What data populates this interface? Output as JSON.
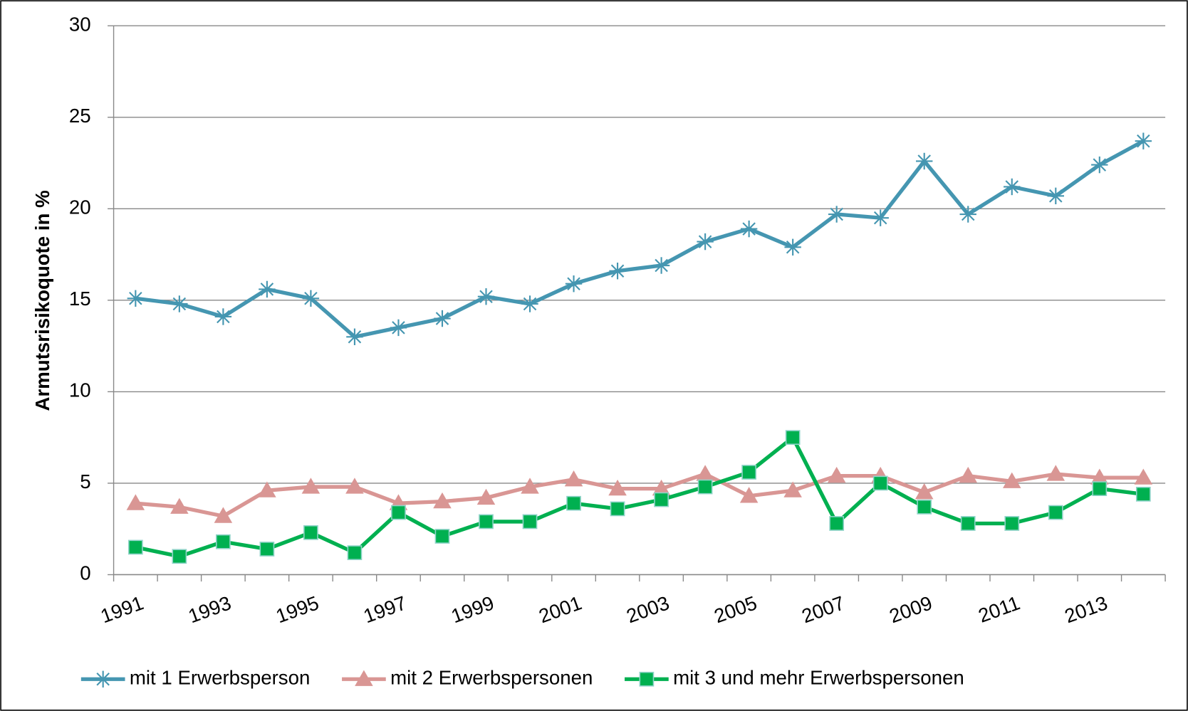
{
  "chart_data": {
    "type": "line",
    "y_label": "Armutsrisikoquote in %",
    "categories": [
      "1991",
      null,
      "1993",
      null,
      "1995",
      null,
      "1997",
      null,
      "1999",
      null,
      "2001",
      null,
      "2003",
      null,
      "2005",
      null,
      "2007",
      null,
      "2009",
      null,
      "2011",
      null,
      "2013",
      null
    ],
    "series": [
      {
        "name": "mit 1 Erwerbsperson",
        "color": "#4596b1",
        "marker": "star",
        "values": [
          15.1,
          14.8,
          14.1,
          15.6,
          15.1,
          13.0,
          13.5,
          14.0,
          15.2,
          14.8,
          15.9,
          16.6,
          16.9,
          18.2,
          18.9,
          17.9,
          19.7,
          19.5,
          22.6,
          19.7,
          21.2,
          20.7,
          22.4,
          23.7
        ]
      },
      {
        "name": "mit 2 Erwerbspersonen",
        "color": "#d99694",
        "marker": "triangle",
        "values": [
          3.9,
          3.7,
          3.2,
          4.6,
          4.8,
          4.8,
          3.9,
          4.0,
          4.2,
          4.8,
          5.2,
          4.7,
          4.7,
          5.5,
          4.3,
          4.6,
          5.4,
          5.4,
          4.5,
          5.4,
          5.1,
          5.5,
          5.3,
          5.3
        ]
      },
      {
        "name": "mit 3 und mehr Erwerbspersonen",
        "color": "#00b050",
        "marker": "square",
        "values": [
          1.5,
          1.0,
          1.8,
          1.4,
          2.3,
          1.2,
          3.4,
          2.1,
          2.9,
          2.9,
          3.9,
          3.6,
          4.1,
          4.8,
          5.6,
          7.5,
          2.8,
          5.0,
          3.7,
          2.8,
          2.8,
          3.4,
          4.7,
          4.4
        ]
      }
    ],
    "ylim": [
      0,
      30
    ],
    "yticks": [
      0,
      5,
      10,
      15,
      20,
      25,
      30
    ],
    "grid": true,
    "legend": "bottom"
  }
}
